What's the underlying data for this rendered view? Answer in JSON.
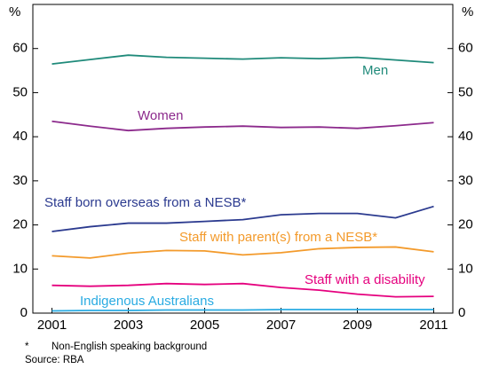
{
  "chart_data": {
    "type": "line",
    "ylabel": "%",
    "y2label": "%",
    "x": [
      2001,
      2002,
      2003,
      2004,
      2005,
      2006,
      2007,
      2008,
      2009,
      2010,
      2011
    ],
    "xlim": [
      2000.5,
      2011.5
    ],
    "xticks": [
      2001,
      2003,
      2005,
      2007,
      2009,
      2011
    ],
    "ylim": [
      0,
      70
    ],
    "yticks": [
      0,
      10,
      20,
      30,
      40,
      50,
      60
    ],
    "y2lim": [
      0,
      70
    ],
    "y2ticks": [
      0,
      10,
      20,
      30,
      40,
      50,
      60
    ],
    "series": [
      {
        "name": "Men",
        "color": "#1f8a7a",
        "values": [
          56.5,
          57.5,
          58.5,
          58.0,
          57.8,
          57.6,
          57.9,
          57.7,
          58.0,
          57.4,
          56.8
        ]
      },
      {
        "name": "Women",
        "color": "#8c2a8c",
        "values": [
          43.5,
          42.4,
          41.4,
          41.9,
          42.2,
          42.4,
          42.1,
          42.2,
          41.9,
          42.5,
          43.2
        ]
      },
      {
        "name": "Staff born overseas from a NESB*",
        "color": "#2b3a8f",
        "values": [
          18.5,
          19.6,
          20.4,
          20.4,
          20.8,
          21.2,
          22.3,
          22.6,
          22.6,
          21.6,
          24.2
        ]
      },
      {
        "name": "Staff with parent(s) from a NESB*",
        "color": "#f39a2b",
        "values": [
          13.0,
          12.5,
          13.6,
          14.2,
          14.1,
          13.2,
          13.7,
          14.6,
          14.9,
          15.0,
          13.9
        ]
      },
      {
        "name": "Staff with a disability",
        "color": "#e5007e",
        "values": [
          6.3,
          6.1,
          6.3,
          6.7,
          6.5,
          6.7,
          5.8,
          5.2,
          4.3,
          3.7,
          3.8
        ]
      },
      {
        "name": "Indigenous Australians",
        "color": "#29abe2",
        "values": [
          0.5,
          0.6,
          0.6,
          0.7,
          0.7,
          0.7,
          0.8,
          0.8,
          0.8,
          0.8,
          0.8
        ]
      }
    ],
    "notes": [
      "*",
      "Non-English speaking background",
      "Source: RBA"
    ]
  }
}
